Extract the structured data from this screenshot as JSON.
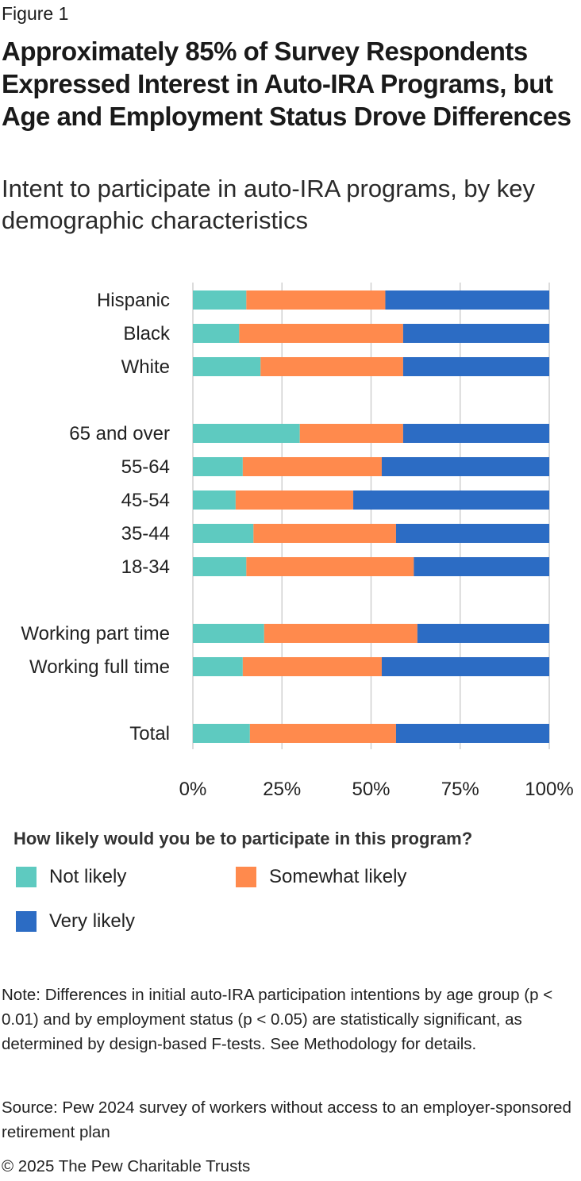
{
  "figure_label": "Figure 1",
  "title": "Approximately 85% of Survey Respondents Expressed Interest in Auto-IRA Programs, but Age and Employment Status Drove Differences",
  "subtitle": "Intent to participate in auto-IRA programs, by key demographic characteristics",
  "chart_data": {
    "type": "bar",
    "orientation": "horizontal",
    "stacked": true,
    "categories": [
      "Hispanic",
      "Black",
      "White",
      "65 and over",
      "55-64",
      "45-54",
      "35-44",
      "18-34",
      "Working part time",
      "Working full time",
      "Total"
    ],
    "groups": [
      [
        "Hispanic",
        "Black",
        "White"
      ],
      [
        "65 and over",
        "55-64",
        "45-54",
        "35-44",
        "18-34"
      ],
      [
        "Working part time",
        "Working full time"
      ],
      [
        "Total"
      ]
    ],
    "series": [
      {
        "name": "Not likely",
        "color": "#5ECAC0",
        "values": [
          15,
          13,
          19,
          30,
          14,
          12,
          17,
          15,
          20,
          14,
          16
        ]
      },
      {
        "name": "Somewhat likely",
        "color": "#FF8A4D",
        "values": [
          39,
          46,
          40,
          29,
          39,
          33,
          40,
          47,
          43,
          39,
          41
        ]
      },
      {
        "name": "Very likely",
        "color": "#2C6CC4",
        "values": [
          46,
          41,
          41,
          41,
          47,
          55,
          43,
          38,
          37,
          47,
          43
        ]
      }
    ],
    "xlim": [
      0,
      100
    ],
    "xticks": [
      "0%",
      "25%",
      "50%",
      "75%",
      "100%"
    ],
    "grid": true,
    "legend_position": "bottom"
  },
  "legend": {
    "title": "How likely would you be to participate in this program?",
    "items": [
      {
        "label": "Not likely",
        "color": "#5ECAC0"
      },
      {
        "label": "Somewhat likely",
        "color": "#FF8A4D"
      },
      {
        "label": "Very likely",
        "color": "#2C6CC4"
      }
    ]
  },
  "note": "Note: Differences in initial auto-IRA participation intentions by age group (p < 0.01) and by employment status (p < 0.05) are statistically significant, as determined by design-based F-tests. See Methodology for details.",
  "source": "Source: Pew 2024 survey of workers without access to an employer-sponsored retirement plan",
  "copyright": "© 2025 The Pew Charitable Trusts"
}
